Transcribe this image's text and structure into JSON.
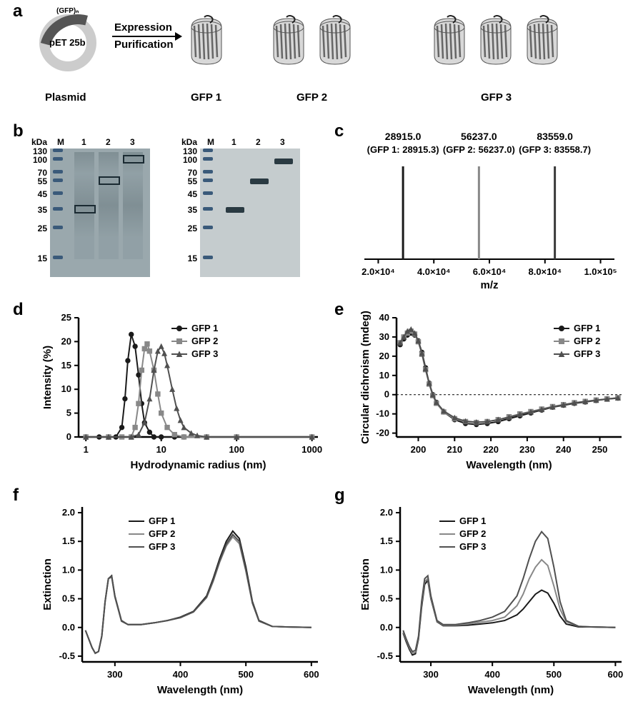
{
  "panelLabels": {
    "a": "a",
    "b": "b",
    "c": "c",
    "d": "d",
    "e": "e",
    "f": "f",
    "g": "g"
  },
  "a": {
    "plasmidInsert": "(GFP)ₙ",
    "plasmidName": "pET 25b",
    "step1": "Expression",
    "step2": "Purification",
    "plasmidLbl": "Plasmid",
    "gfp1": "GFP 1",
    "gfp2": "GFP 2",
    "gfp3": "GFP 3"
  },
  "b": {
    "kDa": "kDa",
    "M": "M",
    "lane1": "1",
    "lane2": "2",
    "lane3": "3",
    "mw": [
      130,
      100,
      70,
      55,
      45,
      35,
      25,
      15
    ],
    "mwY": [
      0,
      12,
      30,
      42,
      60,
      82,
      108,
      150
    ]
  },
  "c": {
    "peaks": [
      {
        "label": "28915.0",
        "sub": "(GFP 1: 28915.3)",
        "x": 28915,
        "color": "#1a1a1a"
      },
      {
        "label": "56237.0",
        "sub": "(GFP 2: 56237.0)",
        "x": 56237,
        "color": "#888888"
      },
      {
        "label": "83559.0",
        "sub": "(GFP 3: 83558.7)",
        "x": 83559,
        "color": "#3a3a3a"
      }
    ],
    "xlabel": "m/z",
    "xticks": [
      "2.0×10⁴",
      "4.0×10⁴",
      "6.0×10⁴",
      "8.0×10⁴",
      "1.0×10⁵"
    ],
    "xtickv": [
      20000,
      40000,
      60000,
      80000,
      100000
    ],
    "xlim": [
      15000,
      105000
    ]
  },
  "d": {
    "xlabel": "Hydrodynamic radius (nm)",
    "ylabel": "Intensity (%)",
    "yticks": [
      0,
      5,
      10,
      15,
      20,
      25
    ],
    "ylim": [
      0,
      25
    ],
    "xticks": [
      1,
      10,
      100,
      1000
    ],
    "xlim": [
      0.8,
      1200
    ],
    "legend": [
      "GFP 1",
      "GFP 2",
      "GFP 3"
    ],
    "colors": [
      "#1a1a1a",
      "#888888",
      "#505050"
    ],
    "markers": [
      "circle",
      "square",
      "triangle"
    ],
    "series": [
      {
        "x": [
          1,
          1.5,
          2,
          2.5,
          3,
          3.3,
          3.6,
          4,
          4.5,
          5,
          5.5,
          6,
          7,
          8,
          10,
          15,
          20,
          40,
          100,
          1000
        ],
        "y": [
          0,
          0,
          0,
          0,
          2,
          8,
          16,
          21.5,
          19,
          13,
          7,
          3,
          1,
          0,
          0,
          0,
          0,
          0,
          0,
          0
        ]
      },
      {
        "x": [
          1,
          2,
          3,
          4,
          4.5,
          5,
          5.5,
          6,
          6.5,
          7,
          8,
          9,
          10,
          12,
          15,
          20,
          40,
          100,
          1000
        ],
        "y": [
          0,
          0,
          0,
          0,
          2,
          7,
          14,
          18.5,
          19.5,
          18,
          14,
          9,
          5,
          2,
          0.5,
          0,
          0,
          0,
          0
        ]
      },
      {
        "x": [
          1,
          2,
          4,
          5,
          6,
          7,
          8,
          9,
          10,
          11,
          12,
          14,
          16,
          18,
          20,
          25,
          30,
          40,
          100,
          1000
        ],
        "y": [
          0,
          0,
          0,
          0.5,
          3,
          8,
          14,
          18,
          19,
          17.5,
          15,
          10,
          6,
          3.5,
          2,
          0.8,
          0.3,
          0,
          0,
          0
        ]
      }
    ]
  },
  "e": {
    "xlabel": "Wavelength (nm)",
    "ylabel": "Circular dichroism (mdeg)",
    "yticks": [
      -20,
      -10,
      0,
      10,
      20,
      30,
      40
    ],
    "ylim": [
      -22,
      40
    ],
    "xticks": [
      200,
      210,
      220,
      230,
      240,
      250
    ],
    "xlim": [
      194,
      256
    ],
    "legend": [
      "GFP 1",
      "GFP 2",
      "GFP 3"
    ],
    "colors": [
      "#1a1a1a",
      "#888888",
      "#505050"
    ],
    "markers": [
      "circle",
      "square",
      "triangle"
    ],
    "series": [
      {
        "x": [
          195,
          196,
          197,
          198,
          199,
          200,
          201,
          202,
          203,
          204,
          205,
          207,
          210,
          213,
          216,
          219,
          222,
          225,
          228,
          231,
          234,
          237,
          240,
          243,
          246,
          249,
          252,
          255
        ],
        "y": [
          26,
          29,
          31,
          32,
          31,
          28,
          22,
          14,
          6,
          0,
          -4,
          -9,
          -13,
          -15,
          -15.5,
          -15,
          -14,
          -12.5,
          -11,
          -9.5,
          -8,
          -6.5,
          -5.5,
          -4.5,
          -3.8,
          -3,
          -2.3,
          -1.8
        ]
      },
      {
        "x": [
          195,
          196,
          197,
          198,
          199,
          200,
          201,
          202,
          203,
          204,
          205,
          207,
          210,
          213,
          216,
          219,
          222,
          225,
          228,
          231,
          234,
          237,
          240,
          243,
          246,
          249,
          252,
          255
        ],
        "y": [
          27,
          30,
          32,
          33,
          31.5,
          27.5,
          21,
          13,
          5.5,
          -0.5,
          -4.5,
          -9,
          -12.5,
          -14,
          -14.5,
          -14,
          -13,
          -11.5,
          -10,
          -8.8,
          -7.5,
          -6.2,
          -5.2,
          -4.2,
          -3.5,
          -2.8,
          -2.2,
          -1.6
        ]
      },
      {
        "x": [
          195,
          196,
          197,
          198,
          199,
          200,
          201,
          202,
          203,
          204,
          205,
          207,
          210,
          213,
          216,
          219,
          222,
          225,
          228,
          231,
          234,
          237,
          240,
          243,
          246,
          249,
          252,
          255
        ],
        "y": [
          27,
          30,
          33,
          34,
          32,
          28,
          21.5,
          13.5,
          6,
          0,
          -4,
          -8.5,
          -12,
          -13.8,
          -14.3,
          -14,
          -13,
          -11.8,
          -10.3,
          -9,
          -7.7,
          -6.4,
          -5.3,
          -4.3,
          -3.6,
          -2.9,
          -2.3,
          -1.7
        ]
      }
    ]
  },
  "f": {
    "xlabel": "Wavelength (nm)",
    "ylabel": "Extinction",
    "yticks": [
      "-0.5",
      "0.0",
      "0.5",
      "1.0",
      "1.5",
      "2.0"
    ],
    "ytickv": [
      -0.5,
      0,
      0.5,
      1,
      1.5,
      2
    ],
    "ylim": [
      -0.6,
      2.1
    ],
    "xticks": [
      300,
      400,
      500,
      600
    ],
    "xlim": [
      250,
      610
    ],
    "legend": [
      "GFP 1",
      "GFP 2",
      "GFP 3"
    ],
    "colors": [
      "#1a1a1a",
      "#888888",
      "#505050"
    ],
    "series": [
      {
        "x": [
          255,
          260,
          265,
          270,
          275,
          280,
          285,
          290,
          295,
          300,
          310,
          320,
          340,
          360,
          380,
          400,
          420,
          440,
          450,
          460,
          470,
          480,
          490,
          500,
          510,
          520,
          540,
          560,
          600
        ],
        "y": [
          -0.05,
          -0.2,
          -0.35,
          -0.45,
          -0.42,
          -0.15,
          0.45,
          0.85,
          0.9,
          0.55,
          0.12,
          0.05,
          0.05,
          0.08,
          0.12,
          0.18,
          0.28,
          0.55,
          0.85,
          1.2,
          1.5,
          1.68,
          1.55,
          1.05,
          0.45,
          0.12,
          0.02,
          0.01,
          0
        ]
      },
      {
        "x": [
          255,
          260,
          265,
          270,
          275,
          280,
          285,
          290,
          295,
          300,
          310,
          320,
          340,
          360,
          380,
          400,
          420,
          440,
          450,
          460,
          470,
          480,
          490,
          500,
          510,
          520,
          540,
          560,
          600
        ],
        "y": [
          -0.05,
          -0.2,
          -0.35,
          -0.45,
          -0.42,
          -0.15,
          0.45,
          0.85,
          0.88,
          0.53,
          0.11,
          0.05,
          0.05,
          0.08,
          0.12,
          0.17,
          0.27,
          0.52,
          0.8,
          1.14,
          1.42,
          1.58,
          1.46,
          0.98,
          0.42,
          0.11,
          0.02,
          0.01,
          0
        ]
      },
      {
        "x": [
          255,
          260,
          265,
          270,
          275,
          280,
          285,
          290,
          295,
          300,
          310,
          320,
          340,
          360,
          380,
          400,
          420,
          440,
          450,
          460,
          470,
          480,
          490,
          500,
          510,
          520,
          540,
          560,
          600
        ],
        "y": [
          -0.05,
          -0.2,
          -0.35,
          -0.45,
          -0.42,
          -0.15,
          0.45,
          0.85,
          0.89,
          0.54,
          0.11,
          0.05,
          0.05,
          0.08,
          0.12,
          0.17,
          0.27,
          0.53,
          0.82,
          1.16,
          1.45,
          1.62,
          1.5,
          1.0,
          0.43,
          0.11,
          0.02,
          0.01,
          0
        ]
      }
    ]
  },
  "g": {
    "xlabel": "Wavelength (nm)",
    "ylabel": "Extinction",
    "yticks": [
      "-0.5",
      "0.0",
      "0.5",
      "1.0",
      "1.5",
      "2.0"
    ],
    "ytickv": [
      -0.5,
      0,
      0.5,
      1,
      1.5,
      2
    ],
    "ylim": [
      -0.6,
      2.1
    ],
    "xticks": [
      300,
      400,
      500,
      600
    ],
    "xlim": [
      250,
      610
    ],
    "legend": [
      "GFP 1",
      "GFP 2",
      "GFP 3"
    ],
    "colors": [
      "#1a1a1a",
      "#888888",
      "#505050"
    ],
    "series": [
      {
        "x": [
          255,
          260,
          265,
          270,
          275,
          280,
          285,
          290,
          295,
          300,
          310,
          320,
          340,
          360,
          380,
          400,
          420,
          440,
          450,
          460,
          470,
          480,
          490,
          500,
          510,
          520,
          540,
          560,
          600
        ],
        "y": [
          -0.1,
          -0.25,
          -0.38,
          -0.48,
          -0.46,
          -0.2,
          0.35,
          0.75,
          0.82,
          0.5,
          0.1,
          0.03,
          0.03,
          0.04,
          0.06,
          0.08,
          0.12,
          0.22,
          0.32,
          0.45,
          0.58,
          0.65,
          0.6,
          0.42,
          0.2,
          0.06,
          0.01,
          0.01,
          0
        ]
      },
      {
        "x": [
          255,
          260,
          265,
          270,
          275,
          280,
          285,
          290,
          295,
          300,
          310,
          320,
          340,
          360,
          380,
          400,
          420,
          440,
          450,
          460,
          470,
          480,
          490,
          500,
          510,
          520,
          540,
          560,
          600
        ],
        "y": [
          -0.08,
          -0.22,
          -0.35,
          -0.45,
          -0.43,
          -0.18,
          0.4,
          0.8,
          0.85,
          0.52,
          0.11,
          0.04,
          0.04,
          0.06,
          0.09,
          0.12,
          0.18,
          0.38,
          0.58,
          0.85,
          1.05,
          1.18,
          1.08,
          0.72,
          0.32,
          0.1,
          0.02,
          0.01,
          0
        ]
      },
      {
        "x": [
          255,
          260,
          265,
          270,
          275,
          280,
          285,
          290,
          295,
          300,
          310,
          320,
          340,
          360,
          380,
          400,
          420,
          440,
          450,
          460,
          470,
          480,
          490,
          500,
          510,
          520,
          540,
          560,
          600
        ],
        "y": [
          -0.05,
          -0.2,
          -0.33,
          -0.42,
          -0.4,
          -0.15,
          0.45,
          0.85,
          0.9,
          0.55,
          0.12,
          0.05,
          0.05,
          0.08,
          0.12,
          0.18,
          0.28,
          0.55,
          0.85,
          1.2,
          1.5,
          1.67,
          1.55,
          1.05,
          0.45,
          0.12,
          0.02,
          0.01,
          0
        ]
      }
    ]
  }
}
